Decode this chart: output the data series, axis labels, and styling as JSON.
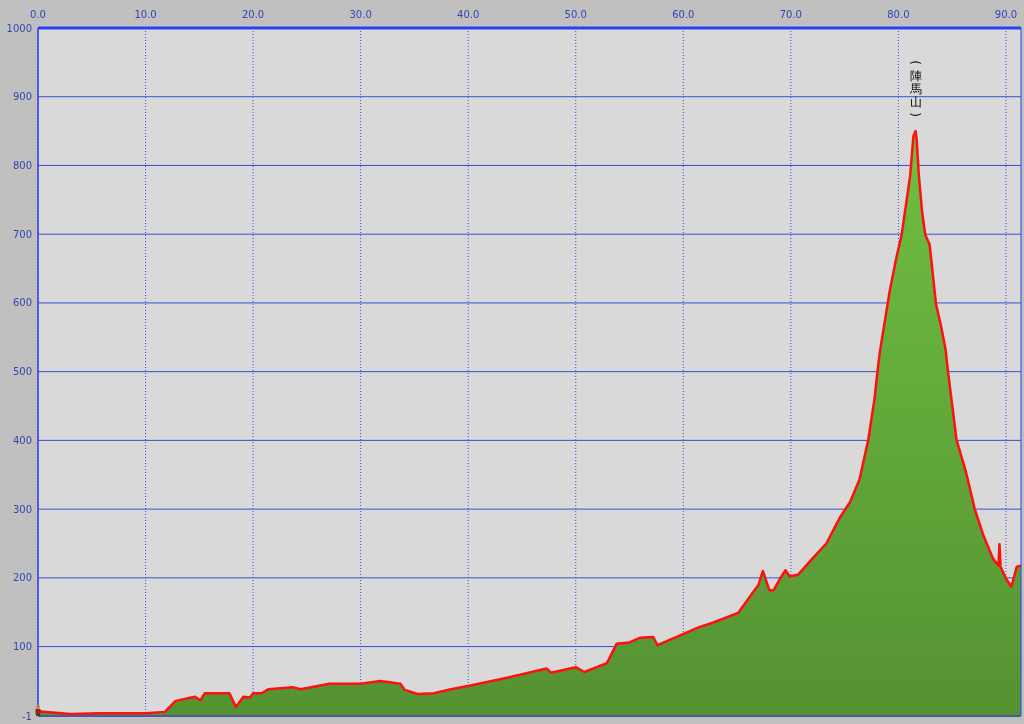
{
  "chart_data": {
    "type": "area",
    "xlim": [
      0,
      91.4
    ],
    "ylim": [
      -1,
      1000
    ],
    "xticks": [
      {
        "value": 0,
        "label": "0.0"
      },
      {
        "value": 10,
        "label": "10.0"
      },
      {
        "value": 20,
        "label": "20.0"
      },
      {
        "value": 30,
        "label": "30.0"
      },
      {
        "value": 40,
        "label": "40.0"
      },
      {
        "value": 50,
        "label": "50.0"
      },
      {
        "value": 60,
        "label": "60.0"
      },
      {
        "value": 70,
        "label": "70.0"
      },
      {
        "value": 80,
        "label": "80.0"
      },
      {
        "value": 90,
        "label": "90.0"
      }
    ],
    "yticks": [
      -1,
      100,
      200,
      300,
      400,
      500,
      600,
      700,
      800,
      900,
      1000
    ],
    "grid": true,
    "annotations": [
      {
        "text": "(陣馬山)",
        "x": 81.6,
        "y": 850
      }
    ],
    "series": [
      {
        "color": "#5a9a35",
        "x": [
          0,
          3,
          5.8,
          10,
          11.8,
          12.8,
          14.6,
          15.1,
          15.5,
          17.8,
          18.4,
          19.1,
          19.7,
          20,
          20.8,
          21.4,
          23.7,
          24.4,
          27.1,
          30,
          31.8,
          33.7,
          34.1,
          35.3,
          36.8,
          38.4,
          40.1,
          43.4,
          47.3,
          47.7,
          50,
          50.8,
          52.9,
          53.8,
          55,
          56,
          57.2,
          57.6,
          60.4,
          61.4,
          62.8,
          65.1,
          66.3,
          67,
          67.4,
          68,
          68.4,
          69,
          69.5,
          69.9,
          70.7,
          72,
          73.3,
          74.6,
          75.5,
          76.4,
          77.2,
          77.8,
          78.1,
          78.3,
          79.2,
          79.8,
          80.3,
          80.7,
          81.1,
          81.4,
          81.6,
          81.7,
          81.9,
          82.2,
          82.5,
          82.9,
          83.5,
          84,
          84.4,
          84.6,
          85.4,
          86.3,
          87.1,
          87.9,
          88.8,
          89.3,
          89.4,
          89.5,
          90,
          90.5,
          91,
          91.4
        ],
        "values": [
          6,
          2,
          3,
          3,
          5,
          21,
          27,
          22,
          32,
          32,
          12,
          27,
          26,
          32,
          32,
          38,
          41,
          38,
          46,
          46,
          50,
          46,
          37,
          31,
          32,
          38,
          43,
          54,
          68,
          62,
          70,
          63,
          76,
          104,
          106,
          113,
          114,
          102,
          121,
          128,
          135,
          149,
          175,
          190,
          210,
          182,
          182,
          199,
          211,
          202,
          205,
          228,
          250,
          289,
          310,
          344,
          401,
          463,
          507,
          531,
          618,
          665,
          699,
          742,
          786,
          843,
          850,
          838,
          786,
          733,
          699,
          685,
          598,
          564,
          531,
          502,
          401,
          353,
          300,
          262,
          228,
          218,
          249,
          216,
          199,
          187,
          216,
          218
        ]
      }
    ]
  }
}
